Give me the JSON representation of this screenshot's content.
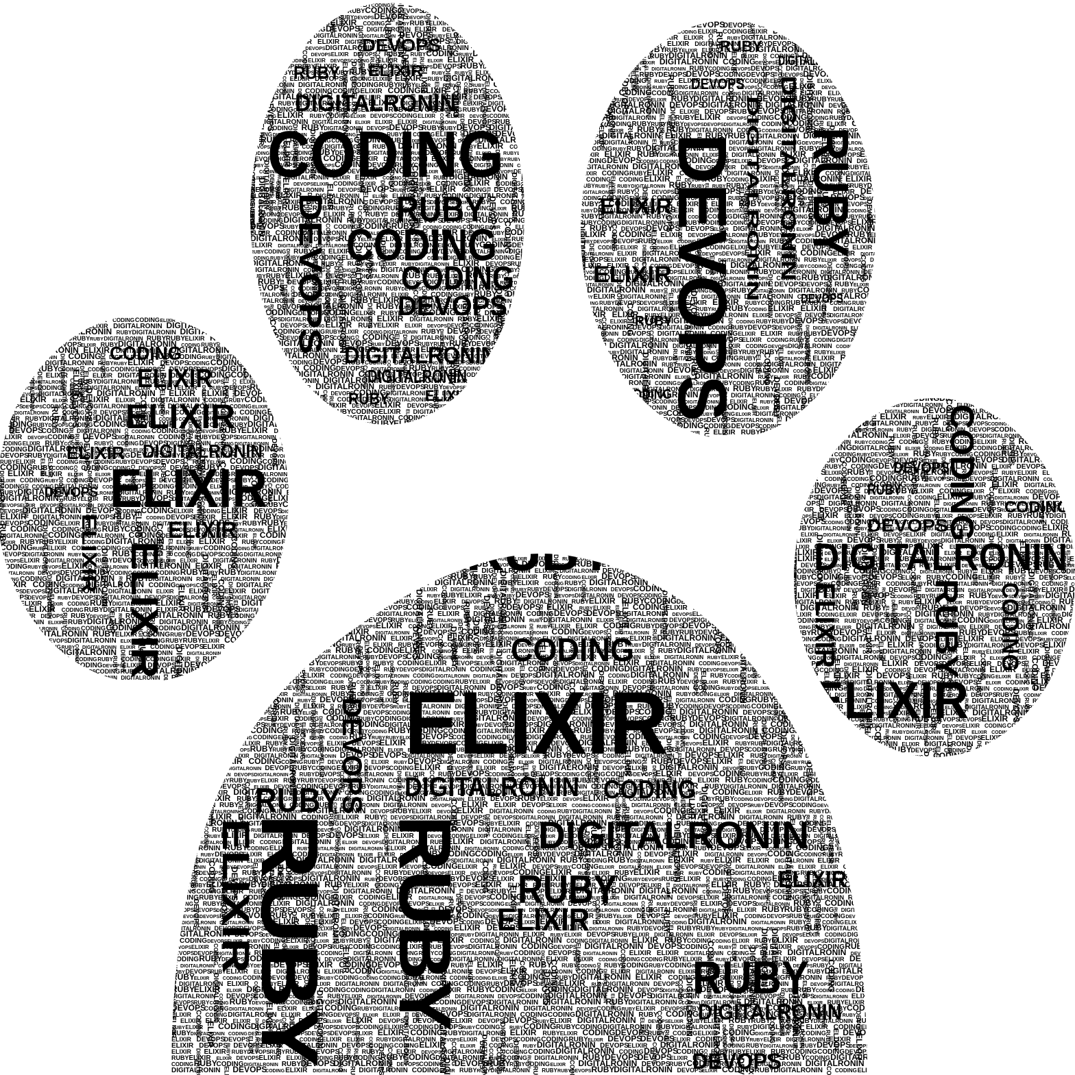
{
  "image": {
    "background": "#ffffff",
    "ink": "#000000",
    "shape": "paw-print"
  },
  "word_cloud": {
    "top_left_toe": {
      "large_words": [
        "CODING",
        "CODING",
        "RUBY",
        "CODING",
        "DEVOPS",
        "DEVOPS",
        "DIGITALRONIN",
        "DIGITALRONIN",
        "DIGITALRONIN",
        "DEVOPS",
        "ELIXIR",
        "RUBY",
        "RUBY",
        "ELIXIR"
      ],
      "filler_words": [
        "RUBY",
        "ELIXIR",
        "DEVOPS",
        "CODING",
        "DIGITALRONIN"
      ]
    },
    "top_right_toe": {
      "large_words": [
        "DEVOPS",
        "RUBY",
        "DIGITALRONIN",
        "DIGITALRONIN",
        "ELIXIR",
        "ELIXIR",
        "RUBY",
        "DIGITALRONIN",
        "DEVOPS",
        "CODING",
        "DEVOPS",
        "RUBY"
      ],
      "filler_words": [
        "RUBY",
        "ELIXIR",
        "DEVOPS",
        "CODING",
        "DIGITALRONIN"
      ]
    },
    "left_toe": {
      "large_words": [
        "ELIXIR",
        "ELIXIR",
        "ELIXIR",
        "ELIXIR",
        "ELIXIR",
        "DIGITALRONIN",
        "CODING",
        "ELIXIR",
        "DEVOPS",
        "ELIXIR"
      ],
      "filler_words": [
        "RUBY",
        "ELIXIR",
        "DEVOPS",
        "CODING",
        "DIGITALRONIN"
      ]
    },
    "right_toe": {
      "large_words": [
        "DIGITALRONIN",
        "ELIXIR",
        "CODING",
        "RUBY",
        "CODING",
        "DEVOPS",
        "ELIXIR",
        "CODING",
        "DEVOPS",
        "RUBY"
      ],
      "filler_words": [
        "RUBY",
        "ELIXIR",
        "DEVOPS",
        "CODING",
        "DIGITALRONIN"
      ]
    },
    "main_pad": {
      "large_words": [
        "ELIXIR",
        "RUBY",
        "RUBY",
        "RUBY",
        "CODING",
        "DIGITALRONIN",
        "RUBY",
        "ELIXIR",
        "ELIXIR",
        "DIGITALRONIN",
        "CODING",
        "RUBY",
        "DEVOPS",
        "DIGITALRONIN",
        "RUBY",
        "DEVOPS",
        "ELIXIR"
      ],
      "filler_words": [
        "RUBY",
        "ELIXIR",
        "DEVOPS",
        "CODING",
        "DIGITALRONIN"
      ]
    }
  }
}
